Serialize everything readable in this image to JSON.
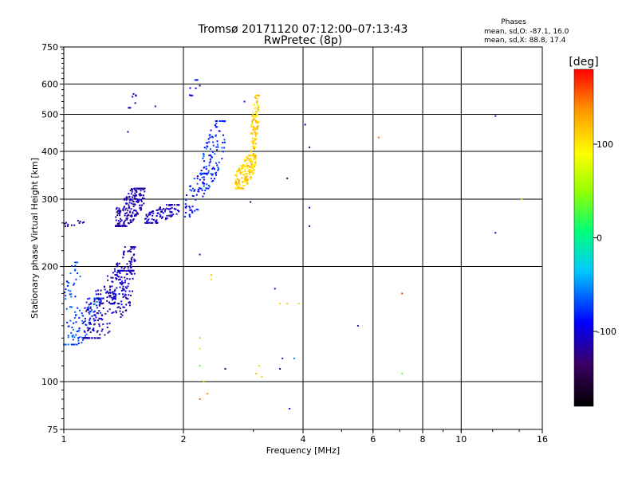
{
  "header": {
    "title_line1": "Tromsø 20171120 07:12:00–07:13:43",
    "title_line2": "RwPretec (8p)",
    "phases_title": "Phases",
    "phases_line1": "mean, sd,O: -87.1, 16.0",
    "phases_line2": "mean, sd,X: 88.8, 17.4"
  },
  "chart_data": {
    "type": "scatter",
    "title": "Tromsø 20171120 07:12:00–07:13:43",
    "subtitle": "RwPretec (8p)",
    "xlabel": "Frequency [MHz]",
    "ylabel": "Stationary phase Virtual Height [km]",
    "xscale": "log",
    "yscale": "log",
    "xlim": [
      1,
      16
    ],
    "ylim": [
      75,
      750
    ],
    "xticks": [
      1,
      2,
      4,
      6,
      8,
      10,
      16
    ],
    "xtick_labels": [
      "1",
      "2",
      "4",
      "6",
      "8",
      "10",
      "16"
    ],
    "yticks": [
      75,
      100,
      200,
      300,
      400,
      500,
      600,
      750
    ],
    "ytick_labels": [
      "75",
      "100",
      "200",
      "300",
      "400",
      "500",
      "600",
      "750"
    ],
    "grid": true,
    "colorbar": {
      "label": "[deg]",
      "range": [
        -180,
        180
      ],
      "ticks": [
        100,
        0,
        -100
      ],
      "tick_labels": [
        "100",
        "0",
        "-100"
      ],
      "colors": [
        "#000000",
        "#3c0064",
        "#0000ff",
        "#00c8ff",
        "#00ff78",
        "#96ff00",
        "#ffff00",
        "#ff9600",
        "#ff0000"
      ]
    },
    "point_groups": [
      {
        "x_range": [
          1.0,
          1.25
        ],
        "y_range": [
          125,
          165
        ],
        "phase": -75,
        "count": 120
      },
      {
        "x_range": [
          1.12,
          1.5
        ],
        "y_range": [
          130,
          195
        ],
        "phase": -110,
        "count": 200
      },
      {
        "x_range": [
          1.3,
          1.52
        ],
        "y_range": [
          160,
          225
        ],
        "phase": -108,
        "count": 120
      },
      {
        "x_range": [
          1.0,
          1.1
        ],
        "y_range": [
          155,
          205
        ],
        "phase": -70,
        "count": 30
      },
      {
        "x_range": [
          1.35,
          1.6
        ],
        "y_range": [
          255,
          320
        ],
        "phase": -112,
        "count": 220
      },
      {
        "x_range": [
          1.6,
          1.95
        ],
        "y_range": [
          260,
          290
        ],
        "phase": -110,
        "count": 110
      },
      {
        "x_range": [
          2.0,
          2.3
        ],
        "y_range": [
          270,
          350
        ],
        "phase": -85,
        "count": 70
      },
      {
        "x_range": [
          2.2,
          2.55
        ],
        "y_range": [
          320,
          480
        ],
        "phase": -80,
        "count": 110
      },
      {
        "x_range": [
          2.7,
          3.05
        ],
        "y_range": [
          320,
          390
        ],
        "phase": 110,
        "count": 180
      },
      {
        "x_range": [
          2.95,
          3.1
        ],
        "y_range": [
          390,
          560
        ],
        "phase": 110,
        "count": 110
      },
      {
        "x_range": [
          1.0,
          1.13
        ],
        "y_range": [
          255,
          265
        ],
        "phase": -110,
        "count": 12
      },
      {
        "x_range": [
          1.45,
          1.55
        ],
        "y_range": [
          520,
          575
        ],
        "phase": -115,
        "count": 8
      },
      {
        "x_range": [
          2.05,
          2.2
        ],
        "y_range": [
          560,
          615
        ],
        "phase": -90,
        "count": 10
      }
    ],
    "isolated_points": [
      {
        "x": 1.7,
        "y": 525,
        "phase": -110
      },
      {
        "x": 1.45,
        "y": 450,
        "phase": -110
      },
      {
        "x": 2.85,
        "y": 540,
        "phase": -110
      },
      {
        "x": 3.65,
        "y": 340,
        "phase": -140
      },
      {
        "x": 4.05,
        "y": 470,
        "phase": -110
      },
      {
        "x": 4.15,
        "y": 410,
        "phase": -130
      },
      {
        "x": 4.15,
        "y": 285,
        "phase": -110
      },
      {
        "x": 4.15,
        "y": 255,
        "phase": -130
      },
      {
        "x": 2.2,
        "y": 215,
        "phase": -110
      },
      {
        "x": 2.35,
        "y": 190,
        "phase": 120
      },
      {
        "x": 2.35,
        "y": 185,
        "phase": 110
      },
      {
        "x": 3.4,
        "y": 175,
        "phase": -90
      },
      {
        "x": 3.5,
        "y": 160,
        "phase": 110
      },
      {
        "x": 3.65,
        "y": 160,
        "phase": 110
      },
      {
        "x": 3.9,
        "y": 160,
        "phase": 110
      },
      {
        "x": 5.5,
        "y": 140,
        "phase": -120
      },
      {
        "x": 6.2,
        "y": 435,
        "phase": 150
      },
      {
        "x": 7.1,
        "y": 170,
        "phase": 165
      },
      {
        "x": 7.1,
        "y": 105,
        "phase": 40
      },
      {
        "x": 2.2,
        "y": 130,
        "phase": 40
      },
      {
        "x": 2.2,
        "y": 122,
        "phase": 60
      },
      {
        "x": 2.2,
        "y": 110,
        "phase": 30
      },
      {
        "x": 2.25,
        "y": 100,
        "phase": 120
      },
      {
        "x": 2.2,
        "y": 90,
        "phase": 150
      },
      {
        "x": 2.3,
        "y": 93,
        "phase": 140
      },
      {
        "x": 2.55,
        "y": 108,
        "phase": -130
      },
      {
        "x": 3.05,
        "y": 105,
        "phase": 120
      },
      {
        "x": 3.1,
        "y": 110,
        "phase": 110
      },
      {
        "x": 3.15,
        "y": 103,
        "phase": 110
      },
      {
        "x": 3.55,
        "y": 115,
        "phase": -80
      },
      {
        "x": 3.5,
        "y": 108,
        "phase": -130
      },
      {
        "x": 3.8,
        "y": 115,
        "phase": -60
      },
      {
        "x": 3.7,
        "y": 85,
        "phase": -100
      },
      {
        "x": 12.2,
        "y": 245,
        "phase": -120
      },
      {
        "x": 12.2,
        "y": 495,
        "phase": -110
      },
      {
        "x": 14.2,
        "y": 300,
        "phase": 60
      },
      {
        "x": 2.95,
        "y": 295,
        "phase": -130
      }
    ]
  }
}
